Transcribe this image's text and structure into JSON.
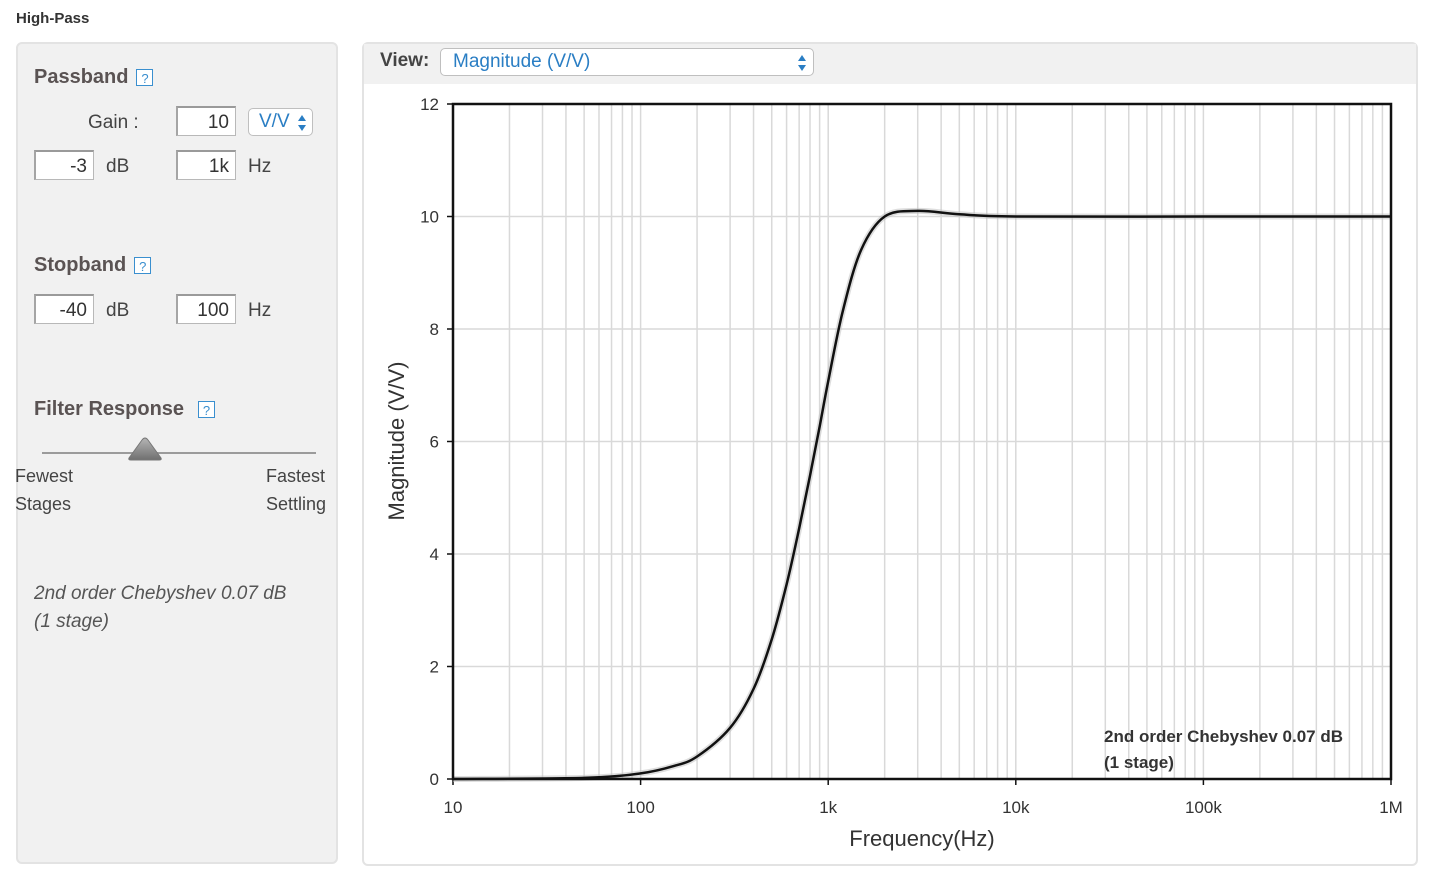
{
  "page": {
    "title": "High-Pass"
  },
  "passband": {
    "heading": "Passband",
    "help": "?",
    "gain_label": "Gain :",
    "gain_value": "10",
    "gain_unit": "V/V",
    "atten_value": "-3",
    "atten_unit": "dB",
    "freq_value": "1k",
    "freq_unit": "Hz"
  },
  "stopband": {
    "heading": "Stopband",
    "help": "?",
    "atten_value": "-40",
    "atten_unit": "dB",
    "freq_value": "100",
    "freq_unit": "Hz"
  },
  "filter_response": {
    "heading": "Filter Response",
    "help": "?",
    "left_label_1": "Fewest",
    "left_label_2": "Stages",
    "right_label_1": "Fastest",
    "right_label_2": "Settling",
    "slider_position": 0.37
  },
  "summary": {
    "line1": "2nd order Chebyshev 0.07 dB",
    "line2": "(1 stage)"
  },
  "view": {
    "label": "View:",
    "selected": "Magnitude (V/V)"
  },
  "colors": {
    "accent": "#2a7ec4",
    "curve": "#111111",
    "grid": "#d9d9d9"
  },
  "chart_data": {
    "type": "line",
    "xscale": "log",
    "xlim": [
      10,
      1000000
    ],
    "ylim": [
      0,
      12
    ],
    "xlabel": "Frequency(Hz)",
    "ylabel": "Magnitude (V/V)",
    "x_ticks": [
      10,
      100,
      1000,
      10000,
      100000,
      1000000
    ],
    "x_tick_labels": [
      "10",
      "100",
      "1k",
      "10k",
      "100k",
      "1M"
    ],
    "y_ticks": [
      0,
      2,
      4,
      6,
      8,
      10,
      12
    ],
    "y_tick_labels": [
      "0",
      "2",
      "4",
      "6",
      "8",
      "10",
      "12"
    ],
    "annotation": [
      "2nd order Chebyshev 0.07 dB",
      "(1 stage)"
    ],
    "series": [
      {
        "x": [
          10,
          50,
          100,
          150,
          200,
          300,
          400,
          500,
          600,
          700,
          800,
          900,
          1000,
          1200,
          1500,
          2000,
          3000,
          5000,
          10000,
          100000,
          1000000
        ],
        "y": [
          0.0,
          0.02,
          0.1,
          0.23,
          0.4,
          0.91,
          1.6,
          2.48,
          3.46,
          4.45,
          5.39,
          6.26,
          7.07,
          8.34,
          9.41,
          10.0,
          10.1,
          10.04,
          10.0,
          10.0,
          10.0
        ]
      }
    ]
  }
}
